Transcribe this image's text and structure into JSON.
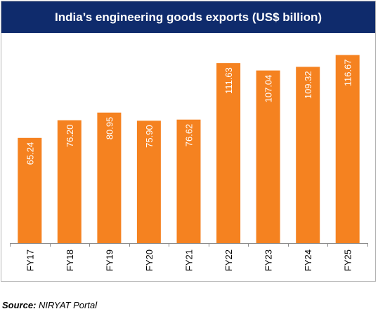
{
  "chart_data": {
    "type": "bar",
    "title": "India’s engineering goods exports (US$ billion)",
    "categories": [
      "FY17",
      "FY18",
      "FY19",
      "FY20",
      "FY21",
      "FY22",
      "FY23",
      "FY24",
      "FY25"
    ],
    "values": [
      65.24,
      76.2,
      80.95,
      75.9,
      76.62,
      111.63,
      107.04,
      109.32,
      116.67
    ],
    "value_labels": [
      "65.24",
      "76.20",
      "80.95",
      "75.90",
      "76.62",
      "111.63",
      "107.04",
      "109.32",
      "116.67"
    ],
    "ylim": [
      0,
      126
    ],
    "bar_color": "#f58220",
    "title_background": "#0f2b6c",
    "label_color": "#ffffff",
    "grid": false,
    "xlabel": "",
    "ylabel": ""
  },
  "source": {
    "label": "Source:",
    "text": " NIRYAT Portal"
  }
}
